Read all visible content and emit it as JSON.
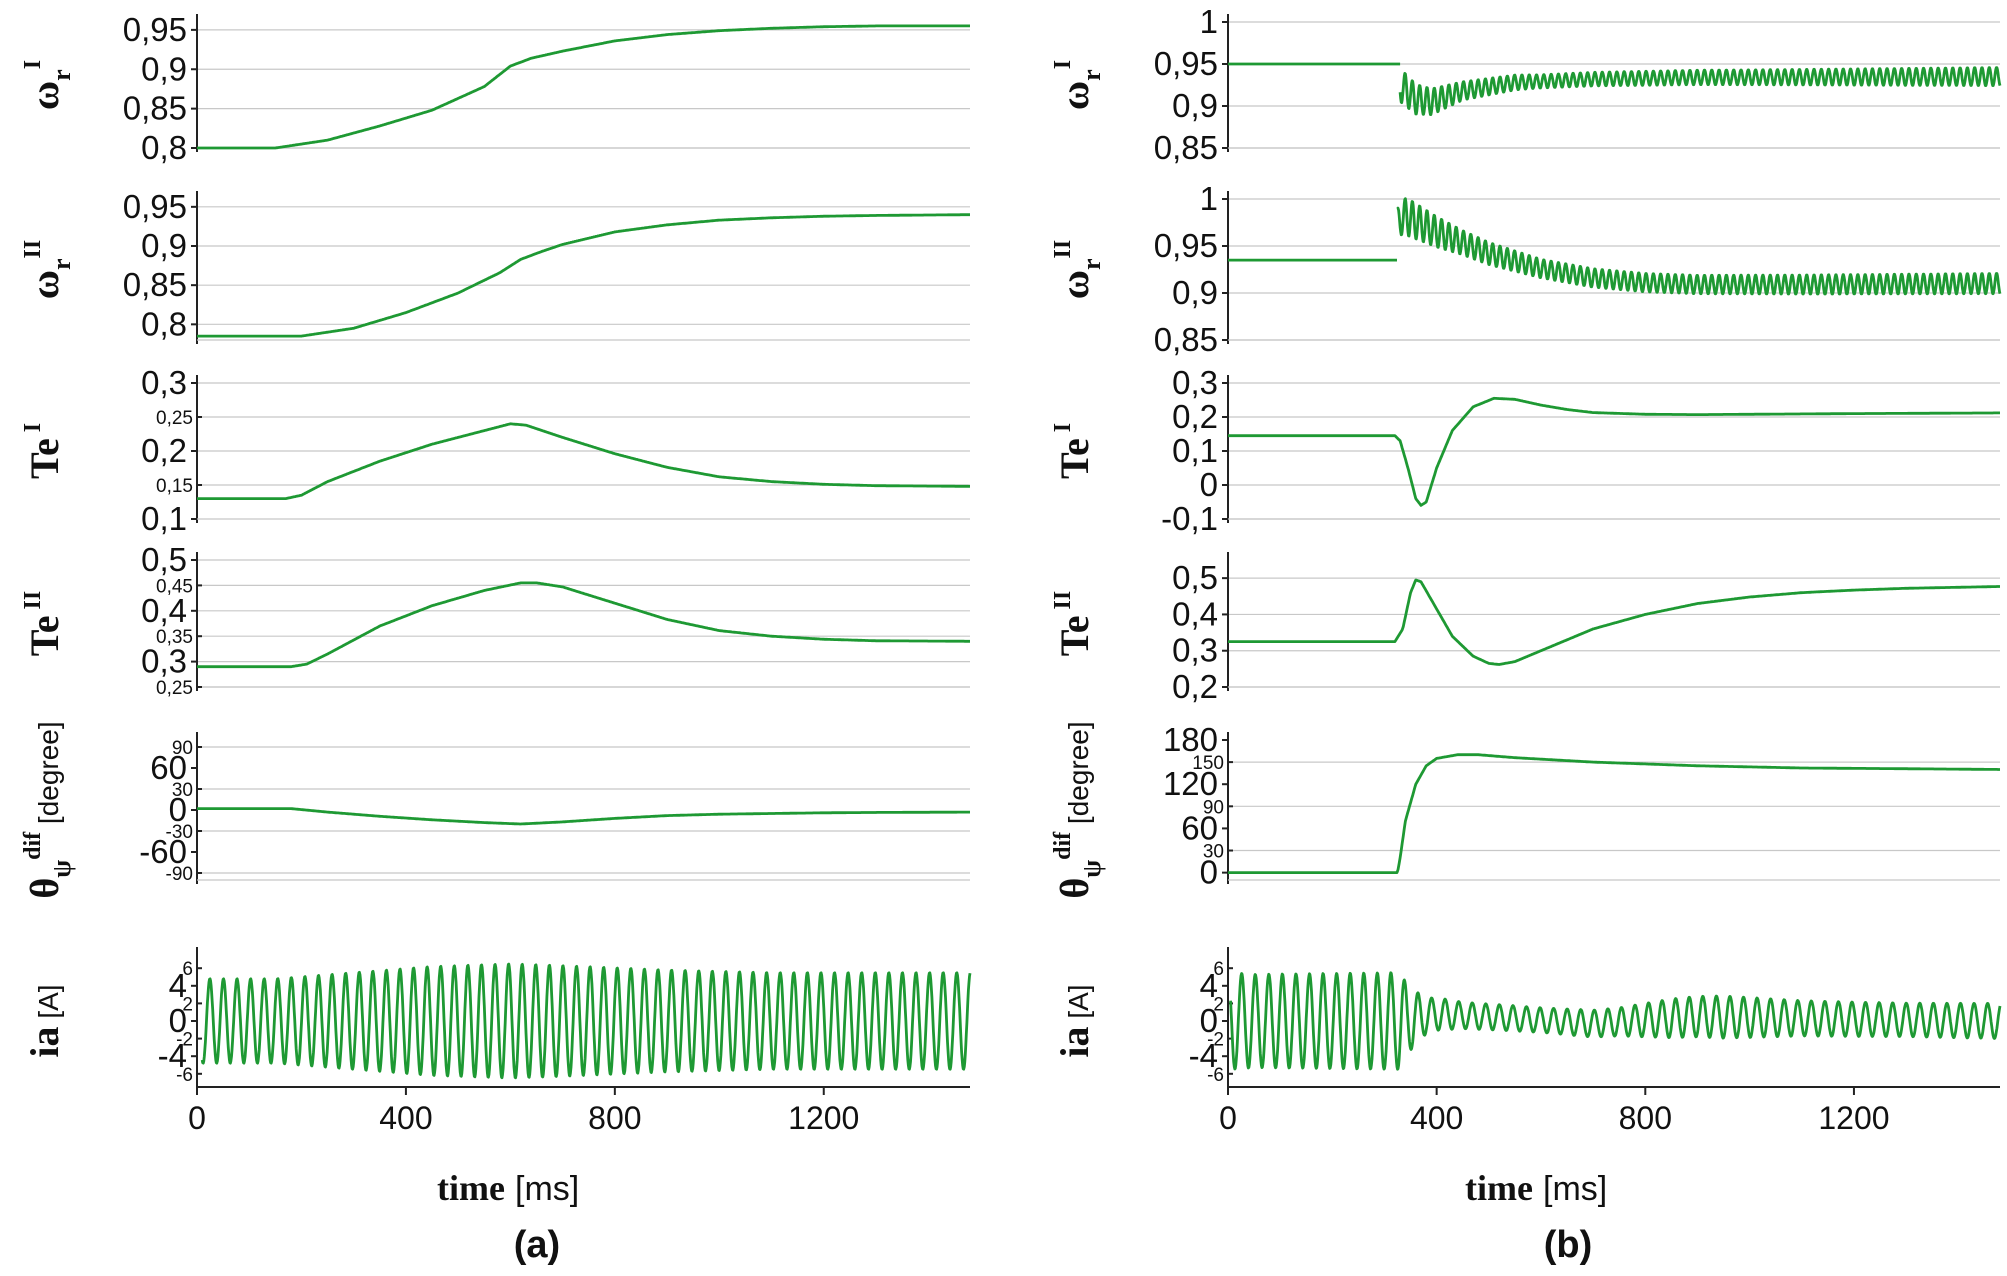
{
  "figure": {
    "x_axis_label": {
      "word": "time",
      "unit": "[ms]"
    },
    "panel_labels": [
      "(a)",
      "(b)"
    ],
    "trace_color": "#1e9933"
  },
  "chart_data": [
    {
      "id": "a-omega-r-I",
      "type": "line",
      "column": "a",
      "ylabel": {
        "base": "ω",
        "sub": "r",
        "sup": "I",
        "unit": ""
      },
      "xlim": [
        0,
        1480
      ],
      "ylim": [
        0.8,
        0.96
      ],
      "major_ticks": [
        {
          "v": 0.8,
          "t": "0,8"
        },
        {
          "v": 0.85,
          "t": "0,85"
        },
        {
          "v": 0.9,
          "t": "0,9"
        },
        {
          "v": 0.95,
          "t": "0,95"
        }
      ],
      "minor_ticks": [],
      "gridlines": [
        0.8,
        0.85,
        0.9,
        0.95
      ],
      "series": [
        {
          "name": "ωr I",
          "x": [
            0,
            150,
            250,
            350,
            450,
            550,
            600,
            640,
            700,
            800,
            900,
            1000,
            1100,
            1200,
            1300,
            1480
          ],
          "y": [
            0.8,
            0.8,
            0.81,
            0.828,
            0.848,
            0.878,
            0.904,
            0.914,
            0.923,
            0.936,
            0.944,
            0.949,
            0.952,
            0.954,
            0.955,
            0.955
          ]
        }
      ]
    },
    {
      "id": "a-omega-r-II",
      "type": "line",
      "column": "a",
      "ylabel": {
        "base": "ω",
        "sub": "r",
        "sup": "II",
        "unit": ""
      },
      "xlim": [
        0,
        1480
      ],
      "ylim": [
        0.78,
        0.96
      ],
      "major_ticks": [
        {
          "v": 0.8,
          "t": "0,8"
        },
        {
          "v": 0.85,
          "t": "0,85"
        },
        {
          "v": 0.9,
          "t": "0,9"
        },
        {
          "v": 0.95,
          "t": "0,95"
        }
      ],
      "minor_ticks": [],
      "gridlines": [
        0.8,
        0.85,
        0.9,
        0.95
      ],
      "series": [
        {
          "name": "ωr II",
          "x": [
            0,
            200,
            300,
            400,
            500,
            580,
            620,
            660,
            700,
            800,
            900,
            1000,
            1100,
            1200,
            1300,
            1480
          ],
          "y": [
            0.785,
            0.785,
            0.795,
            0.815,
            0.84,
            0.866,
            0.883,
            0.893,
            0.902,
            0.918,
            0.927,
            0.933,
            0.936,
            0.938,
            0.939,
            0.94
          ]
        }
      ]
    },
    {
      "id": "a-Te-I",
      "type": "line",
      "column": "a",
      "ylabel": {
        "base": "Te",
        "sub": "",
        "sup": "I",
        "unit": ""
      },
      "xlim": [
        0,
        1480
      ],
      "ylim": [
        0.1,
        0.3
      ],
      "major_ticks": [
        {
          "v": 0.1,
          "t": "0,1"
        },
        {
          "v": 0.2,
          "t": "0,2"
        },
        {
          "v": 0.3,
          "t": "0,3"
        }
      ],
      "minor_ticks": [
        {
          "v": 0.15,
          "t": "0,15"
        },
        {
          "v": 0.25,
          "t": "0,25"
        }
      ],
      "gridlines": [
        0.15,
        0.2,
        0.25,
        0.3
      ],
      "series": [
        {
          "name": "Te I",
          "x": [
            0,
            170,
            200,
            250,
            350,
            450,
            550,
            600,
            630,
            700,
            800,
            900,
            1000,
            1100,
            1200,
            1300,
            1480
          ],
          "y": [
            0.13,
            0.13,
            0.135,
            0.155,
            0.185,
            0.21,
            0.23,
            0.24,
            0.238,
            0.22,
            0.196,
            0.176,
            0.162,
            0.155,
            0.151,
            0.149,
            0.148
          ]
        }
      ]
    },
    {
      "id": "a-Te-II",
      "type": "line",
      "column": "a",
      "ylabel": {
        "base": "Te",
        "sub": "",
        "sup": "II",
        "unit": ""
      },
      "xlim": [
        0,
        1480
      ],
      "ylim": [
        0.25,
        0.5
      ],
      "major_ticks": [
        {
          "v": 0.3,
          "t": "0,3"
        },
        {
          "v": 0.4,
          "t": "0,4"
        },
        {
          "v": 0.5,
          "t": "0,5"
        }
      ],
      "minor_ticks": [
        {
          "v": 0.25,
          "t": "0,25"
        },
        {
          "v": 0.35,
          "t": "0,35"
        },
        {
          "v": 0.45,
          "t": "0,45"
        }
      ],
      "gridlines": [
        0.25,
        0.3,
        0.35,
        0.4,
        0.45,
        0.5
      ],
      "series": [
        {
          "name": "Te II",
          "x": [
            0,
            180,
            210,
            250,
            350,
            450,
            550,
            620,
            650,
            700,
            800,
            900,
            1000,
            1100,
            1200,
            1300,
            1480
          ],
          "y": [
            0.29,
            0.29,
            0.295,
            0.315,
            0.37,
            0.41,
            0.44,
            0.455,
            0.455,
            0.447,
            0.415,
            0.383,
            0.361,
            0.35,
            0.344,
            0.341,
            0.34
          ]
        }
      ]
    },
    {
      "id": "a-theta-dif",
      "type": "line",
      "column": "a",
      "ylabel": {
        "base": "θ",
        "sub": "ψ",
        "sup": "dif",
        "unit": "[degree]"
      },
      "xlim": [
        0,
        1480
      ],
      "ylim": [
        -100,
        100
      ],
      "major_ticks": [
        {
          "v": -60,
          "t": "-60"
        },
        {
          "v": 0,
          "t": "0"
        },
        {
          "v": 60,
          "t": "60"
        }
      ],
      "minor_ticks": [
        {
          "v": -90,
          "t": "-90"
        },
        {
          "v": -30,
          "t": "-30"
        },
        {
          "v": 30,
          "t": "30"
        },
        {
          "v": 90,
          "t": "90"
        }
      ],
      "gridlines": [
        -90,
        -30,
        30,
        90
      ],
      "series": [
        {
          "name": "θψ dif",
          "x": [
            0,
            180,
            250,
            350,
            450,
            550,
            620,
            700,
            800,
            900,
            1000,
            1100,
            1200,
            1300,
            1480
          ],
          "y": [
            2,
            2,
            -3,
            -9,
            -14,
            -18,
            -20,
            -17,
            -12,
            -8,
            -6,
            -5,
            -4,
            -3.5,
            -3
          ]
        }
      ]
    },
    {
      "id": "a-ia",
      "type": "line",
      "column": "a",
      "ylabel": {
        "base": "ia",
        "sub": "",
        "sup": "",
        "unit": "[A]"
      },
      "xlim": [
        0,
        1480
      ],
      "ylim": [
        -7.5,
        7.5
      ],
      "major_ticks": [
        {
          "v": -4,
          "t": "-4"
        },
        {
          "v": 0,
          "t": "0"
        },
        {
          "v": 4,
          "t": "4"
        }
      ],
      "minor_ticks": [
        {
          "v": -6,
          "t": "-6"
        },
        {
          "v": -2,
          "t": "-2"
        },
        {
          "v": 2,
          "t": "2"
        },
        {
          "v": 6,
          "t": "6"
        }
      ],
      "gridlines": [],
      "series": [
        {
          "name": "ia",
          "kind": "oscillation",
          "period_ms": 26,
          "phase": 1.9,
          "x_start": 10,
          "x_end": 1480,
          "envelope": {
            "x": [
              10,
              50,
              150,
              300,
              450,
              600,
              700,
              900,
              1100,
              1300,
              1480
            ],
            "amp": [
              4.8,
              4.8,
              4.8,
              5.5,
              6.2,
              6.5,
              6.3,
              5.8,
              5.5,
              5.5,
              5.5
            ]
          },
          "offset": 0
        }
      ]
    },
    {
      "id": "b-omega-r-I",
      "type": "line",
      "column": "b",
      "ylabel": {
        "base": "ω",
        "sub": "r",
        "sup": "I",
        "unit": ""
      },
      "xlim": [
        0,
        1480
      ],
      "ylim": [
        0.85,
        1.0
      ],
      "major_ticks": [
        {
          "v": 0.85,
          "t": "0,85"
        },
        {
          "v": 0.9,
          "t": "0,9"
        },
        {
          "v": 0.95,
          "t": "0,95"
        },
        {
          "v": 1.0,
          "t": "1"
        }
      ],
      "minor_ticks": [],
      "gridlines": [
        0.85,
        0.9,
        0.95,
        1.0
      ],
      "series": [
        {
          "name": "ωr I",
          "x": [
            0,
            320,
            330
          ],
          "y": [
            0.95,
            0.95,
            0.95
          ]
        },
        {
          "name": "ωr I oscillation",
          "kind": "oscillation",
          "period_ms": 14,
          "phase": 0,
          "x_start": 330,
          "x_end": 1480,
          "center": {
            "x": [
              330,
              360,
              390,
              450,
              550,
              700,
              900,
              1480
            ],
            "y": [
              0.925,
              0.908,
              0.905,
              0.918,
              0.928,
              0.932,
              0.934,
              0.935
            ]
          },
          "envelope": {
            "x": [
              330,
              360,
              450,
              600,
              1000,
              1480
            ],
            "amp": [
              0.02,
              0.018,
              0.011,
              0.008,
              0.009,
              0.011
            ]
          }
        }
      ]
    },
    {
      "id": "b-omega-r-II",
      "type": "line",
      "column": "b",
      "ylabel": {
        "base": "ω",
        "sub": "r",
        "sup": "II",
        "unit": ""
      },
      "xlim": [
        0,
        1480
      ],
      "ylim": [
        0.85,
        1.0
      ],
      "major_ticks": [
        {
          "v": 0.85,
          "t": "0,85"
        },
        {
          "v": 0.9,
          "t": "0,9"
        },
        {
          "v": 0.95,
          "t": "0,95"
        },
        {
          "v": 1.0,
          "t": "1"
        }
      ],
      "minor_ticks": [],
      "gridlines": [
        0.85,
        0.9,
        0.95,
        1.0
      ],
      "series": [
        {
          "name": "ωr II",
          "x": [
            0,
            320,
            325
          ],
          "y": [
            0.935,
            0.935,
            0.935
          ]
        },
        {
          "name": "ωr II oscillation",
          "kind": "oscillation",
          "period_ms": 14,
          "phase": 0,
          "x_start": 325,
          "x_end": 1480,
          "center": {
            "x": [
              325,
              340,
              400,
              500,
              600,
              700,
              800,
              900,
              1100,
              1480
            ],
            "y": [
              0.975,
              0.982,
              0.965,
              0.942,
              0.926,
              0.916,
              0.911,
              0.909,
              0.909,
              0.91
            ]
          },
          "envelope": {
            "x": [
              325,
              345,
              450,
              600,
              900,
              1480
            ],
            "amp": [
              0.015,
              0.02,
              0.013,
              0.01,
              0.01,
              0.011
            ]
          }
        }
      ]
    },
    {
      "id": "b-Te-I",
      "type": "line",
      "column": "b",
      "ylabel": {
        "base": "Te",
        "sub": "",
        "sup": "I",
        "unit": ""
      },
      "xlim": [
        0,
        1480
      ],
      "ylim": [
        -0.1,
        0.3
      ],
      "major_ticks": [
        {
          "v": -0.1,
          "t": "-0,1"
        },
        {
          "v": 0.0,
          "t": "0"
        },
        {
          "v": 0.1,
          "t": "0,1"
        },
        {
          "v": 0.2,
          "t": "0,2"
        },
        {
          "v": 0.3,
          "t": "0,3"
        }
      ],
      "minor_ticks": [],
      "gridlines": [
        -0.1,
        0.0,
        0.1,
        0.2,
        0.3
      ],
      "series": [
        {
          "name": "Te I",
          "x": [
            0,
            320,
            330,
            345,
            360,
            370,
            380,
            400,
            430,
            470,
            510,
            550,
            600,
            650,
            700,
            800,
            900,
            1000,
            1200,
            1480
          ],
          "y": [
            0.145,
            0.145,
            0.13,
            0.05,
            -0.04,
            -0.06,
            -0.05,
            0.05,
            0.16,
            0.23,
            0.255,
            0.252,
            0.235,
            0.222,
            0.213,
            0.208,
            0.207,
            0.208,
            0.21,
            0.212
          ]
        }
      ]
    },
    {
      "id": "b-Te-II",
      "type": "line",
      "column": "b",
      "ylabel": {
        "base": "Te",
        "sub": "",
        "sup": "II",
        "unit": ""
      },
      "xlim": [
        0,
        1480
      ],
      "ylim": [
        0.2,
        0.55
      ],
      "major_ticks": [
        {
          "v": 0.2,
          "t": "0,2"
        },
        {
          "v": 0.3,
          "t": "0,3"
        },
        {
          "v": 0.4,
          "t": "0,4"
        },
        {
          "v": 0.5,
          "t": "0,5"
        }
      ],
      "minor_ticks": [],
      "gridlines": [
        0.2,
        0.3,
        0.4,
        0.5
      ],
      "series": [
        {
          "name": "Te II",
          "x": [
            0,
            320,
            335,
            350,
            360,
            370,
            390,
            430,
            470,
            500,
            520,
            550,
            600,
            700,
            800,
            900,
            1000,
            1100,
            1200,
            1300,
            1480
          ],
          "y": [
            0.325,
            0.325,
            0.36,
            0.46,
            0.495,
            0.49,
            0.44,
            0.34,
            0.285,
            0.265,
            0.262,
            0.27,
            0.3,
            0.36,
            0.4,
            0.43,
            0.448,
            0.46,
            0.467,
            0.472,
            0.477
          ]
        }
      ]
    },
    {
      "id": "b-theta-dif",
      "type": "line",
      "column": "b",
      "ylabel": {
        "base": "θ",
        "sub": "ψ",
        "sup": "dif",
        "unit": "[degree]"
      },
      "xlim": [
        0,
        1480
      ],
      "ylim": [
        -10,
        180
      ],
      "major_ticks": [
        {
          "v": 0,
          "t": "0"
        },
        {
          "v": 60,
          "t": "60"
        },
        {
          "v": 120,
          "t": "120"
        },
        {
          "v": 180,
          "t": "180"
        }
      ],
      "minor_ticks": [
        {
          "v": 30,
          "t": "30"
        },
        {
          "v": 90,
          "t": "90"
        },
        {
          "v": 150,
          "t": "150"
        }
      ],
      "gridlines": [
        30,
        90,
        150
      ],
      "series": [
        {
          "name": "θψ dif",
          "x": [
            0,
            325,
            330,
            340,
            360,
            380,
            400,
            440,
            480,
            550,
            700,
            900,
            1100,
            1300,
            1480
          ],
          "y": [
            0,
            0,
            20,
            70,
            120,
            145,
            155,
            160,
            160,
            156,
            150,
            145,
            142,
            141,
            140
          ]
        }
      ]
    },
    {
      "id": "b-ia",
      "type": "line",
      "column": "b",
      "ylabel": {
        "base": "ia",
        "sub": "",
        "sup": "",
        "unit": "[A]"
      },
      "xlim": [
        0,
        1480
      ],
      "ylim": [
        -7.5,
        7.5
      ],
      "major_ticks": [
        {
          "v": -4,
          "t": "-4"
        },
        {
          "v": 0,
          "t": "0"
        },
        {
          "v": 4,
          "t": "4"
        }
      ],
      "minor_ticks": [
        {
          "v": -6,
          "t": "-6"
        },
        {
          "v": -2,
          "t": "-2"
        },
        {
          "v": 2,
          "t": "2"
        },
        {
          "v": 6,
          "t": "6"
        }
      ],
      "gridlines": [],
      "series": [
        {
          "name": "ia",
          "kind": "oscillation",
          "period_ms": 26,
          "phase": 1.5,
          "x_start": 5,
          "x_end": 1480,
          "envelope": {
            "x": [
              5,
              50,
              330,
              345,
              380,
              450,
              600,
              750,
              850,
              950,
              1100,
              1300,
              1480
            ],
            "amp": [
              5.5,
              5.3,
              5.5,
              3.8,
              2.0,
              1.5,
              1.4,
              1.6,
              2.2,
              2.4,
              2.0,
              1.9,
              2.0
            ]
          },
          "center": {
            "x": [
              0,
              330,
              400,
              550,
              700,
              900,
              1200,
              1480
            ],
            "y": [
              0,
              0,
              0.8,
              0.3,
              -0.3,
              0.5,
              0.2,
              0
            ]
          }
        }
      ]
    }
  ]
}
